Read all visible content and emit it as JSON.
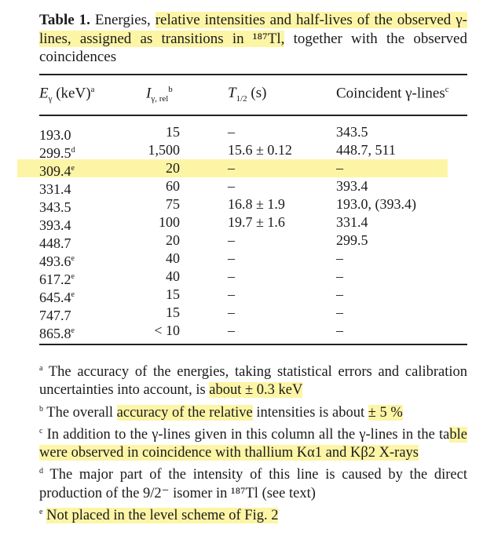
{
  "caption": {
    "label": "Table 1.",
    "text_a": "Energies, ",
    "text_hl": "relative intensities and half-lives of the observed γ-lines, assigned as transitions in ¹⁸⁷Tl,",
    "text_b": " together with the observed coincidences"
  },
  "headers": {
    "energy": "E",
    "energy_sub": "γ",
    "energy_unit": " (keV)",
    "energy_fn": "a",
    "intensity": "I",
    "intensity_sub": "γ, rel",
    "intensity_fn": "b",
    "halflife": "T",
    "halflife_sub": "1/2",
    "halflife_unit": " (s)",
    "coinc": "Coincident γ-lines",
    "coinc_fn": "c"
  },
  "rows": [
    {
      "energy": "193.0",
      "fn": "",
      "intensity": "15",
      "halflife": "–",
      "coinc": "343.5"
    },
    {
      "energy": "299.5",
      "fn": "d",
      "intensity": "1,500",
      "halflife": "15.6 ± 0.12",
      "coinc": "448.7,  511"
    },
    {
      "energy": "309.4",
      "fn": "e",
      "intensity": "20",
      "halflife": "–",
      "coinc": "–"
    },
    {
      "energy": "331.4",
      "fn": "",
      "intensity": "60",
      "halflife": "–",
      "coinc": "393.4"
    },
    {
      "energy": "343.5",
      "fn": "",
      "intensity": "75",
      "halflife": "16.8 ± 1.9",
      "coinc": "193.0,  (393.4)"
    },
    {
      "energy": "393.4",
      "fn": "",
      "intensity": "100",
      "halflife": "19.7 ± 1.6",
      "coinc": "331.4"
    },
    {
      "energy": "448.7",
      "fn": "",
      "intensity": "20",
      "halflife": "–",
      "coinc": "299.5"
    },
    {
      "energy": "493.6",
      "fn": "e",
      "intensity": "40",
      "halflife": "–",
      "coinc": "–"
    },
    {
      "energy": "617.2",
      "fn": "e",
      "intensity": "40",
      "halflife": "–",
      "coinc": "–"
    },
    {
      "energy": "645.4",
      "fn": "e",
      "intensity": "15",
      "halflife": "–",
      "coinc": "–"
    },
    {
      "energy": "747.7",
      "fn": "",
      "intensity": "15",
      "halflife": "–",
      "coinc": "–"
    },
    {
      "energy": "865.8",
      "fn": "e",
      "intensity": "< 10",
      "halflife": "–",
      "coinc": "–"
    }
  ],
  "notes": {
    "a_mark": "a",
    "a_text": " The accuracy of the energies, taking statistical errors and calibration uncertainties into account, is ",
    "a_hl": "about ± 0.3 keV",
    "b_mark": "b",
    "b_text1": " The overall ",
    "b_hl1": "accuracy of the relative",
    "b_text2": " intensities is about ",
    "b_hl2": "± 5 %",
    "c_mark": "c",
    "c_text": " In addition to the γ-lines given in this column all the γ-lines in the ta",
    "c_hl": "ble were observed in coincidence with thallium Kα1 and Kβ2 X-rays",
    "d_mark": "d",
    "d_text": " The major part of the intensity of this line is caused by the direct production of the 9/2⁻ isomer in ¹⁸⁷Tl (see text)",
    "e_mark": "e",
    "e_hl": "Not placed in the level scheme of Fig. 2"
  },
  "highlight_color": "#fdf5a6"
}
